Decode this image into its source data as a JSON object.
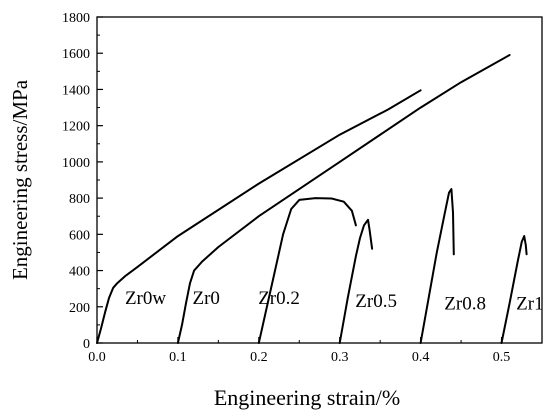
{
  "chart_data": {
    "type": "line",
    "title": "",
    "xlabel": "Engineering strain/%",
    "ylabel": "Engineering stress/MPa",
    "xlim": [
      0.0,
      0.55
    ],
    "ylim": [
      0,
      1800
    ],
    "x_ticks": [
      "0.0",
      "0.1",
      "0.2",
      "0.3",
      "0.4",
      "0.5"
    ],
    "x_tick_values": [
      0.0,
      0.1,
      0.2,
      0.3,
      0.4,
      0.5
    ],
    "y_ticks": [
      "0",
      "200",
      "400",
      "600",
      "800",
      "1000",
      "1200",
      "1400",
      "1600",
      "1800"
    ],
    "y_tick_values": [
      0,
      200,
      400,
      600,
      800,
      1000,
      1200,
      1400,
      1600,
      1800
    ],
    "grid": false,
    "legend": "none",
    "series": [
      {
        "name": "Zr0w",
        "points": [
          [
            0.0,
            0
          ],
          [
            0.005,
            80
          ],
          [
            0.01,
            170
          ],
          [
            0.015,
            250
          ],
          [
            0.02,
            305
          ],
          [
            0.025,
            330
          ],
          [
            0.035,
            370
          ],
          [
            0.05,
            420
          ],
          [
            0.1,
            590
          ],
          [
            0.2,
            880
          ],
          [
            0.3,
            1150
          ],
          [
            0.36,
            1290
          ],
          [
            0.4,
            1395
          ]
        ]
      },
      {
        "name": "Zr0",
        "points": [
          [
            0.1,
            0
          ],
          [
            0.105,
            100
          ],
          [
            0.11,
            220
          ],
          [
            0.115,
            330
          ],
          [
            0.12,
            400
          ],
          [
            0.13,
            450
          ],
          [
            0.15,
            530
          ],
          [
            0.2,
            700
          ],
          [
            0.3,
            1000
          ],
          [
            0.4,
            1300
          ],
          [
            0.45,
            1440
          ],
          [
            0.51,
            1590
          ]
        ]
      },
      {
        "name": "Zr0.2",
        "points": [
          [
            0.2,
            0
          ],
          [
            0.21,
            200
          ],
          [
            0.22,
            400
          ],
          [
            0.23,
            600
          ],
          [
            0.24,
            740
          ],
          [
            0.25,
            790
          ],
          [
            0.27,
            800
          ],
          [
            0.29,
            798
          ],
          [
            0.305,
            780
          ],
          [
            0.315,
            730
          ],
          [
            0.32,
            650
          ]
        ]
      },
      {
        "name": "Zr0.5",
        "points": [
          [
            0.3,
            0
          ],
          [
            0.31,
            250
          ],
          [
            0.32,
            480
          ],
          [
            0.325,
            580
          ],
          [
            0.33,
            650
          ],
          [
            0.335,
            680
          ],
          [
            0.337,
            620
          ],
          [
            0.34,
            520
          ]
        ]
      },
      {
        "name": "Zr0.8",
        "points": [
          [
            0.4,
            0
          ],
          [
            0.41,
            250
          ],
          [
            0.42,
            500
          ],
          [
            0.43,
            720
          ],
          [
            0.435,
            830
          ],
          [
            0.438,
            850
          ],
          [
            0.44,
            720
          ],
          [
            0.441,
            490
          ]
        ]
      },
      {
        "name": "Zr1",
        "points": [
          [
            0.5,
            0
          ],
          [
            0.51,
            220
          ],
          [
            0.52,
            450
          ],
          [
            0.525,
            560
          ],
          [
            0.528,
            590
          ],
          [
            0.53,
            540
          ],
          [
            0.531,
            490
          ]
        ]
      }
    ],
    "annotations": [
      {
        "text": "Zr0w",
        "x": 0.06,
        "y": 215
      },
      {
        "text": "Zr0",
        "x": 0.135,
        "y": 215
      },
      {
        "text": "Zr0.2",
        "x": 0.225,
        "y": 215
      },
      {
        "text": "Zr0.5",
        "x": 0.345,
        "y": 200
      },
      {
        "text": "Zr0.8",
        "x": 0.455,
        "y": 185
      },
      {
        "text": "Zr1",
        "x": 0.535,
        "y": 185
      }
    ]
  }
}
